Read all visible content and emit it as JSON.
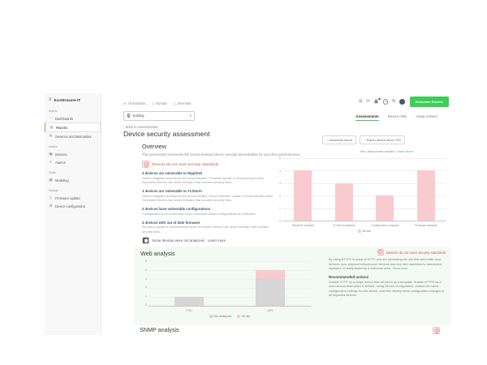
{
  "colors": {
    "accent_green": "#3dcd58",
    "risk_pink": "#f9cbce",
    "not_analyzed_gray": "#d6d6d6",
    "alert_red": "#da544b",
    "link_green": "#5fa579"
  },
  "sidebar": {
    "logo": "EcoStruxure IT",
    "groups": [
      {
        "label": "Assess",
        "items": [
          {
            "label": "Dashboards",
            "icon": "gauge-icon"
          },
          {
            "label": "Reports",
            "icon": "report-icon",
            "selected": true
          },
          {
            "label": "Services and Warranties",
            "icon": "wrench-icon"
          }
        ]
      },
      {
        "label": "Monitor",
        "items": [
          {
            "label": "Devices",
            "icon": "server-icon"
          },
          {
            "label": "Alarms",
            "icon": "alarm-bell-icon"
          }
        ]
      },
      {
        "label": "Model",
        "items": [
          {
            "label": "Modeling",
            "icon": "grid-icon"
          }
        ]
      },
      {
        "label": "Manage",
        "items": [
          {
            "label": "Firmware update",
            "icon": "download-icon"
          },
          {
            "label": "Device configuration",
            "icon": "sliders-icon"
          }
        ]
      }
    ]
  },
  "topbar": {
    "breadcrumb": [
      {
        "label": "All locations",
        "icon": "globe-icon"
      },
      {
        "label": "Europe",
        "icon": "location-icon"
      },
      {
        "label": "Denmark",
        "icon": "location-icon"
      }
    ],
    "location_filter": {
      "value": "Kolding",
      "icon": "pin-icon"
    },
    "icons": [
      "apps-grid-icon",
      "mail-icon",
      "notifications-bell-icon",
      "help-icon",
      "settings-gear-icon",
      "user-avatar"
    ],
    "brand": "Schneider Electric"
  },
  "tabs": [
    {
      "label": "Assessments",
      "active": true
    },
    {
      "label": "Device risks",
      "active": false
    },
    {
      "label": "Asset Advisor",
      "active": false
    }
  ],
  "back_link": "Back to Assessments",
  "page_title": "Device security assessment",
  "overview": {
    "heading": "Overview",
    "intro": "This assessment represents the current detected device security vulnerabilities for your discovered devices.",
    "status_banner": "Devices do not meet security standards",
    "buttons": {
      "download": "Download report",
      "export_csv": "Export device list to CSV"
    },
    "unexpected": "See unexpected results?",
    "learn_more": "Learn more",
    "issues": [
      {
        "title": "4 devices are vulnerable to Ripple20",
        "description": "Interim mitigation techniques are recommended. Firmware update is recommended when Schneider Electric has newer firmware that includes security fixes."
      },
      {
        "title": "3 devices are vulnerable to TLStorm",
        "description": "Interim mitigation techniques are recommended. Device firmware update is recommended when Schneider Electric has newer firmware that includes security fixes."
      },
      {
        "title": "2 devices have vulnerable configurations",
        "description": "Configuration is recommended when vulnerable device configurations are detected."
      },
      {
        "title": "4 devices with out of date firmware",
        "description": "Firmware update is recommended when Schneider Electric has newer firmware that includes security fixes."
      }
    ],
    "not_analyzed_note": "Some devices were not analyzed.",
    "not_analyzed_link": "Learn more"
  },
  "web_analysis": {
    "heading": "Web analysis",
    "status_banner": "Devices do not meet security standards",
    "body": "By using HTTPS in place of HTTP, you are minimizing the risk that web traffic sent between your physical infrastructure devices and end user machines is intercepted, replayed, or manipulated by a malicious actor.",
    "show_more": "Show more",
    "recommended_heading": "Recommended actions",
    "recommended_body": "Disable HTTP on a single device that will serve as a template. Enable HTTPS as a more secure alternative if desired. Using Device Configuration, retrieve the latest configuration settings for this device, and then deploy these configuration changes to all impacted devices."
  },
  "snmp": {
    "heading": "SNMP analysis"
  },
  "chart_data": [
    {
      "type": "bar",
      "categories": [
        "Ripple20 analysis",
        "TLStorm analysis",
        "Configuration analysis",
        "Firmware analysis"
      ],
      "series": [
        {
          "name": "At risk",
          "color": "#f9cbce",
          "values": [
            4,
            3,
            2,
            4
          ]
        }
      ],
      "ylim": [
        0,
        5
      ],
      "yticks": [
        0,
        1,
        2,
        3,
        4,
        5
      ],
      "grid": true,
      "legend_position": "bottom"
    },
    {
      "type": "stacked-bar",
      "categories": [
        "PDU",
        "UPS"
      ],
      "series": [
        {
          "name": "Not analyzed",
          "color": "#d6d6d6",
          "values": [
            1,
            3
          ]
        },
        {
          "name": "At risk",
          "color": "#f9cbce",
          "values": [
            0,
            1
          ]
        }
      ],
      "ylim": [
        0,
        5
      ],
      "yticks": [
        0,
        1,
        2,
        3,
        4,
        5
      ],
      "grid": true,
      "legend_position": "bottom"
    }
  ]
}
